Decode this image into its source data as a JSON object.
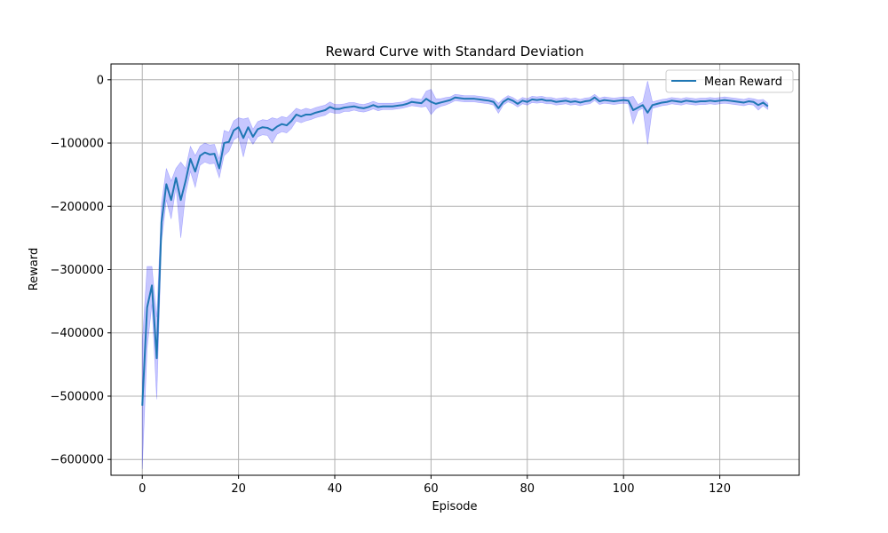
{
  "chart_data": {
    "type": "line",
    "title": "Reward Curve with Standard Deviation",
    "xlabel": "Episode",
    "ylabel": "Reward",
    "xlim": [
      -6.5,
      136.5
    ],
    "ylim": [
      -625000,
      25000
    ],
    "xticks": [
      0,
      20,
      40,
      60,
      80,
      100,
      120
    ],
    "yticks": [
      0,
      -100000,
      -200000,
      -300000,
      -400000,
      -500000,
      -600000
    ],
    "xtick_labels": [
      "0",
      "20",
      "40",
      "60",
      "80",
      "100",
      "120"
    ],
    "ytick_labels": [
      "0",
      "−100000",
      "−200000",
      "−300000",
      "−400000",
      "−500000",
      "−600000"
    ],
    "grid": true,
    "legend_position": "top-right",
    "series": [
      {
        "name": "Mean Reward",
        "color": "#1f77b4",
        "band_color": "#0000ff",
        "band_opacity": 0.22,
        "x": [
          0,
          1,
          2,
          3,
          4,
          5,
          6,
          7,
          8,
          9,
          10,
          11,
          12,
          13,
          14,
          15,
          16,
          17,
          18,
          19,
          20,
          21,
          22,
          23,
          24,
          25,
          26,
          27,
          28,
          29,
          30,
          31,
          32,
          33,
          34,
          35,
          36,
          37,
          38,
          39,
          40,
          41,
          42,
          43,
          44,
          45,
          46,
          47,
          48,
          49,
          50,
          51,
          52,
          53,
          54,
          55,
          56,
          57,
          58,
          59,
          60,
          61,
          62,
          63,
          64,
          65,
          66,
          67,
          68,
          69,
          70,
          71,
          72,
          73,
          74,
          75,
          76,
          77,
          78,
          79,
          80,
          81,
          82,
          83,
          84,
          85,
          86,
          87,
          88,
          89,
          90,
          91,
          92,
          93,
          94,
          95,
          96,
          97,
          98,
          99,
          100,
          101,
          102,
          103,
          104,
          105,
          106,
          107,
          108,
          109,
          110,
          111,
          112,
          113,
          114,
          115,
          116,
          117,
          118,
          119,
          120,
          121,
          122,
          123,
          124,
          125,
          126,
          127,
          128,
          129,
          130
        ],
        "y": [
          -515000,
          -360000,
          -325000,
          -440000,
          -225000,
          -165000,
          -190000,
          -155000,
          -190000,
          -160000,
          -125000,
          -145000,
          -120000,
          -115000,
          -118000,
          -117000,
          -140000,
          -100000,
          -98000,
          -80000,
          -75000,
          -92000,
          -75000,
          -90000,
          -78000,
          -75000,
          -76000,
          -80000,
          -74000,
          -70000,
          -72000,
          -65000,
          -55000,
          -58000,
          -55000,
          -55000,
          -52000,
          -50000,
          -48000,
          -43000,
          -46000,
          -46000,
          -44000,
          -43000,
          -42000,
          -44000,
          -45000,
          -43000,
          -40000,
          -43000,
          -42000,
          -42000,
          -42000,
          -41000,
          -40000,
          -38000,
          -35000,
          -36000,
          -37000,
          -30000,
          -35000,
          -38000,
          -36000,
          -34000,
          -32000,
          -28000,
          -29000,
          -30000,
          -30000,
          -30000,
          -31000,
          -32000,
          -33000,
          -35000,
          -45000,
          -35000,
          -30000,
          -33000,
          -38000,
          -33000,
          -35000,
          -31000,
          -32000,
          -31000,
          -33000,
          -33000,
          -35000,
          -34000,
          -33000,
          -35000,
          -34000,
          -36000,
          -34000,
          -33000,
          -28000,
          -34000,
          -32000,
          -33000,
          -34000,
          -33000,
          -32000,
          -33000,
          -48000,
          -44000,
          -40000,
          -52000,
          -40000,
          -38000,
          -36000,
          -35000,
          -33000,
          -34000,
          -35000,
          -33000,
          -34000,
          -35000,
          -34000,
          -34000,
          -33000,
          -34000,
          -33000,
          -32000,
          -33000,
          -34000,
          -35000,
          -36000,
          -34000,
          -35000,
          -40000,
          -36000,
          -42000
        ],
        "std": [
          100000,
          65000,
          30000,
          65000,
          30000,
          25000,
          30000,
          15000,
          60000,
          20000,
          20000,
          25000,
          15000,
          15000,
          15000,
          15000,
          15000,
          20000,
          15000,
          15000,
          15000,
          30000,
          15000,
          12000,
          12000,
          12000,
          12000,
          20000,
          12000,
          12000,
          12000,
          12000,
          10000,
          10000,
          10000,
          8000,
          8000,
          8000,
          8000,
          8000,
          7000,
          7000,
          6000,
          7000,
          6000,
          6000,
          6000,
          6000,
          6000,
          6000,
          5000,
          5000,
          5000,
          5000,
          5000,
          5000,
          6000,
          6000,
          6000,
          12000,
          20000,
          8000,
          6000,
          6000,
          5000,
          5000,
          5000,
          5000,
          5000,
          5000,
          5000,
          5000,
          5000,
          5000,
          8000,
          5000,
          5000,
          5000,
          5000,
          5000,
          5000,
          5000,
          5000,
          5000,
          5000,
          5000,
          5000,
          5000,
          5000,
          5000,
          5000,
          5000,
          5000,
          5000,
          5000,
          5000,
          5000,
          5000,
          5000,
          5000,
          5000,
          5000,
          22000,
          5000,
          5000,
          50000,
          5000,
          5000,
          5000,
          5000,
          5000,
          5000,
          5000,
          5000,
          5000,
          5000,
          5000,
          5000,
          5000,
          5000,
          5000,
          5000,
          5000,
          5000,
          5000,
          5000,
          5000,
          5000,
          8000,
          5000,
          5000
        ]
      }
    ]
  }
}
